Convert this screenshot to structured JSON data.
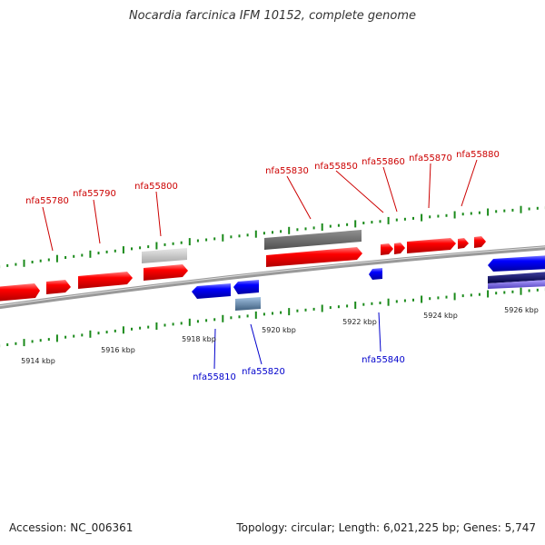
{
  "title": "Nocardia farcinica IFM 10152, complete genome",
  "footer": {
    "accession": "Accession: NC_006361",
    "summary": "Topology: circular; Length: 6,021,225 bp; Genes: 5,747"
  },
  "colors": {
    "forward": "#ff0000",
    "reverse": "#0000ff",
    "backbone": "#888888",
    "tick": "#00aa00",
    "forward_label": "#cc0000",
    "reverse_label": "#0000cc"
  },
  "scale_labels": [
    "5914 kbp",
    "5916 kbp",
    "5918 kbp",
    "5920 kbp",
    "5922 kbp",
    "5924 kbp",
    "5926 kbp"
  ],
  "forward_labels": [
    "nfa55780",
    "nfa55790",
    "nfa55800",
    "nfa55830",
    "nfa55850",
    "nfa55860",
    "nfa55870",
    "nfa55880"
  ],
  "reverse_labels": [
    "nfa55810",
    "nfa55820",
    "nfa55840"
  ]
}
